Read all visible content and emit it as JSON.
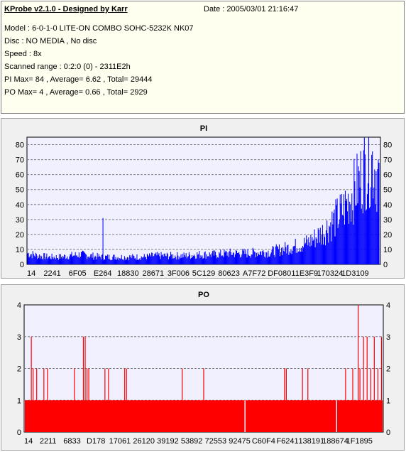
{
  "info": {
    "title": "KProbe v2.1.0 - Designed by Karr",
    "date": "Date : 2005/03/01 21:16:47",
    "lines": [
      "Model : 6-0-1-0 LITE-ON COMBO SOHC-5232K NK07",
      "Disc : NO MEDIA , No disc",
      "Speed : 8x",
      "Scanned range : 0:2:0 (0) - 2311E2h",
      "PI Max= 84 , Average= 6.62 , Total= 29444",
      "PO Max= 4 , Average= 0.66 , Total= 2929"
    ]
  },
  "chart_data": [
    {
      "type": "bar",
      "title": "PI",
      "series_color": "#0000ff",
      "ylim": [
        0,
        85
      ],
      "y_ticks": [
        0,
        10,
        20,
        30,
        40,
        50,
        60,
        70,
        80
      ],
      "x_tick_labels": [
        "14",
        "2241",
        "6F05",
        "E264",
        "18830",
        "28671",
        "3F006",
        "5C129",
        "80623",
        "A7F72",
        "DF080",
        "11E3F9",
        "170324",
        "1D3109"
      ],
      "grid": true,
      "x": [
        0,
        0.03,
        0.06,
        0.09,
        0.12,
        0.15,
        0.18,
        0.21,
        0.24,
        0.27,
        0.3,
        0.33,
        0.36,
        0.39,
        0.42,
        0.45,
        0.48,
        0.51,
        0.54,
        0.57,
        0.6,
        0.63,
        0.66,
        0.69,
        0.72,
        0.75,
        0.78,
        0.8,
        0.82,
        0.84,
        0.86,
        0.88,
        0.9,
        0.92,
        0.94,
        0.96,
        0.98,
        1.0
      ],
      "values": [
        9,
        7,
        6,
        6,
        7,
        8,
        7,
        6,
        6,
        6,
        6,
        6,
        7,
        7,
        7,
        7,
        8,
        8,
        8,
        9,
        9,
        9,
        10,
        10,
        12,
        14,
        16,
        18,
        22,
        26,
        32,
        38,
        45,
        55,
        65,
        78,
        84,
        70
      ],
      "spikes": [
        {
          "x": 0.215,
          "value": 31
        }
      ]
    },
    {
      "type": "bar",
      "title": "PO",
      "series_color": "#ff0000",
      "ylim": [
        0,
        4
      ],
      "y_ticks": [
        0,
        1,
        2,
        3,
        4
      ],
      "x_tick_labels": [
        "14",
        "2211",
        "6833",
        "D178",
        "17061",
        "26120",
        "39192",
        "53892",
        "72553",
        "92475",
        "C60F4",
        "F6241",
        "138191",
        "188674",
        "1F1895"
      ],
      "grid": true,
      "baseline": 1,
      "gaps": [
        0.615,
        0.87
      ],
      "spikes": [
        {
          "x": 0.02,
          "value": 3
        },
        {
          "x": 0.025,
          "value": 2
        },
        {
          "x": 0.035,
          "value": 2
        },
        {
          "x": 0.055,
          "value": 2
        },
        {
          "x": 0.065,
          "value": 2
        },
        {
          "x": 0.14,
          "value": 2
        },
        {
          "x": 0.165,
          "value": 3
        },
        {
          "x": 0.17,
          "value": 3
        },
        {
          "x": 0.175,
          "value": 2
        },
        {
          "x": 0.18,
          "value": 2
        },
        {
          "x": 0.225,
          "value": 2
        },
        {
          "x": 0.235,
          "value": 2
        },
        {
          "x": 0.28,
          "value": 2
        },
        {
          "x": 0.285,
          "value": 2
        },
        {
          "x": 0.44,
          "value": 2
        },
        {
          "x": 0.5,
          "value": 2
        },
        {
          "x": 0.725,
          "value": 2
        },
        {
          "x": 0.73,
          "value": 2
        },
        {
          "x": 0.775,
          "value": 2
        },
        {
          "x": 0.79,
          "value": 2
        },
        {
          "x": 0.895,
          "value": 2
        },
        {
          "x": 0.915,
          "value": 2
        },
        {
          "x": 0.93,
          "value": 4
        },
        {
          "x": 0.935,
          "value": 2
        },
        {
          "x": 0.945,
          "value": 3
        },
        {
          "x": 0.955,
          "value": 3
        },
        {
          "x": 0.965,
          "value": 2
        },
        {
          "x": 0.975,
          "value": 3
        },
        {
          "x": 0.985,
          "value": 2
        },
        {
          "x": 0.995,
          "value": 3
        }
      ]
    }
  ]
}
